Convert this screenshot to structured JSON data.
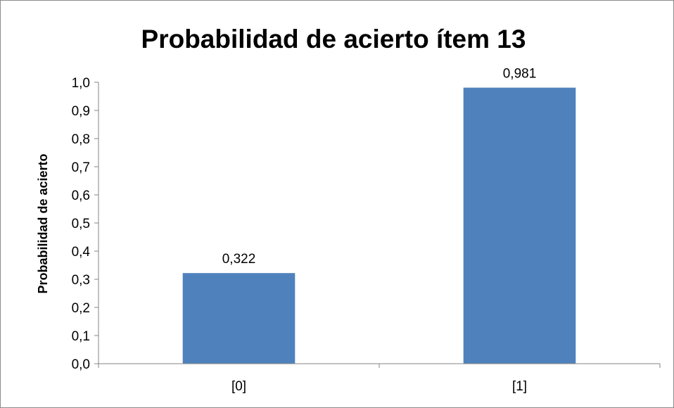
{
  "chart_data": {
    "type": "bar",
    "title": "Probabilidad de acierto ítem 13",
    "xlabel": "",
    "ylabel": "Probabilidad de acierto",
    "categories": [
      "[0]",
      "[1]"
    ],
    "values": [
      0.322,
      0.981
    ],
    "value_labels": [
      "0,322",
      "0,981"
    ],
    "ylim": [
      0,
      1
    ],
    "yticks": [
      "0,0",
      "0,1",
      "0,2",
      "0,3",
      "0,4",
      "0,5",
      "0,6",
      "0,7",
      "0,8",
      "0,9",
      "1,0"
    ],
    "grid": false,
    "legend": "none",
    "bar_color": "#4f81bd"
  }
}
